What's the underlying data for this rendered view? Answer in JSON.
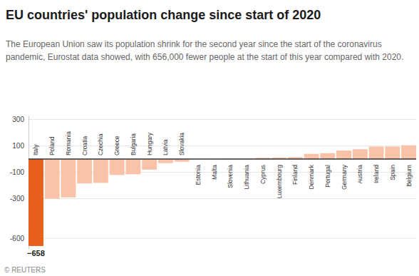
{
  "chart_data": {
    "type": "bar",
    "title": "EU countries' population change since start of 2020",
    "subtitle": "The European Union saw its population shrink for the second year since the start of the coronavirus pandemic, Eurostat data showed, with 656,000 fewer people at the start of this year compared with 2020.",
    "source": "© REUTERS",
    "categories": [
      "Italy",
      "Poland",
      "Romania",
      "Croatia",
      "Czechia",
      "Greece",
      "Bulgaria",
      "Hungary",
      "Latvia",
      "Slovakia",
      "Estonia",
      "Malta",
      "Slovenia",
      "Lithuania",
      "Cyprus",
      "Luxembourg",
      "Finland",
      "Denmark",
      "Portugal",
      "Germany",
      "Austria",
      "Ireland",
      "Spain",
      "Belgium"
    ],
    "values": [
      -658,
      -300,
      -290,
      -184,
      -180,
      -120,
      -115,
      -80,
      -30,
      -20,
      1,
      2,
      3,
      5,
      10,
      12,
      15,
      40,
      45,
      65,
      75,
      95,
      95,
      105
    ],
    "value_labels": [
      "−658",
      null,
      null,
      null,
      null,
      null,
      null,
      null,
      null,
      null,
      null,
      null,
      null,
      null,
      null,
      null,
      null,
      null,
      null,
      null,
      null,
      null,
      null,
      null
    ],
    "data_labels": true,
    "colors": [
      "#e8601c",
      "#f9c3a9",
      "#f9c3a9",
      "#f9c3a9",
      "#f9c3a9",
      "#f9c3a9",
      "#f9c3a9",
      "#f9c3a9",
      "#f9c3a9",
      "#f9c3a9",
      "#f9c3a9",
      "#f9c3a9",
      "#f9c3a9",
      "#f9c3a9",
      "#f9c3a9",
      "#f9c3a9",
      "#f9c3a9",
      "#f9c3a9",
      "#f9c3a9",
      "#f9c3a9",
      "#f9c3a9",
      "#f9c3a9",
      "#f9c3a9",
      "#f9c3a9"
    ],
    "ylim": [
      -680,
      330
    ],
    "yticks": [
      300,
      100,
      -100,
      -300,
      -600
    ],
    "grid": true
  }
}
